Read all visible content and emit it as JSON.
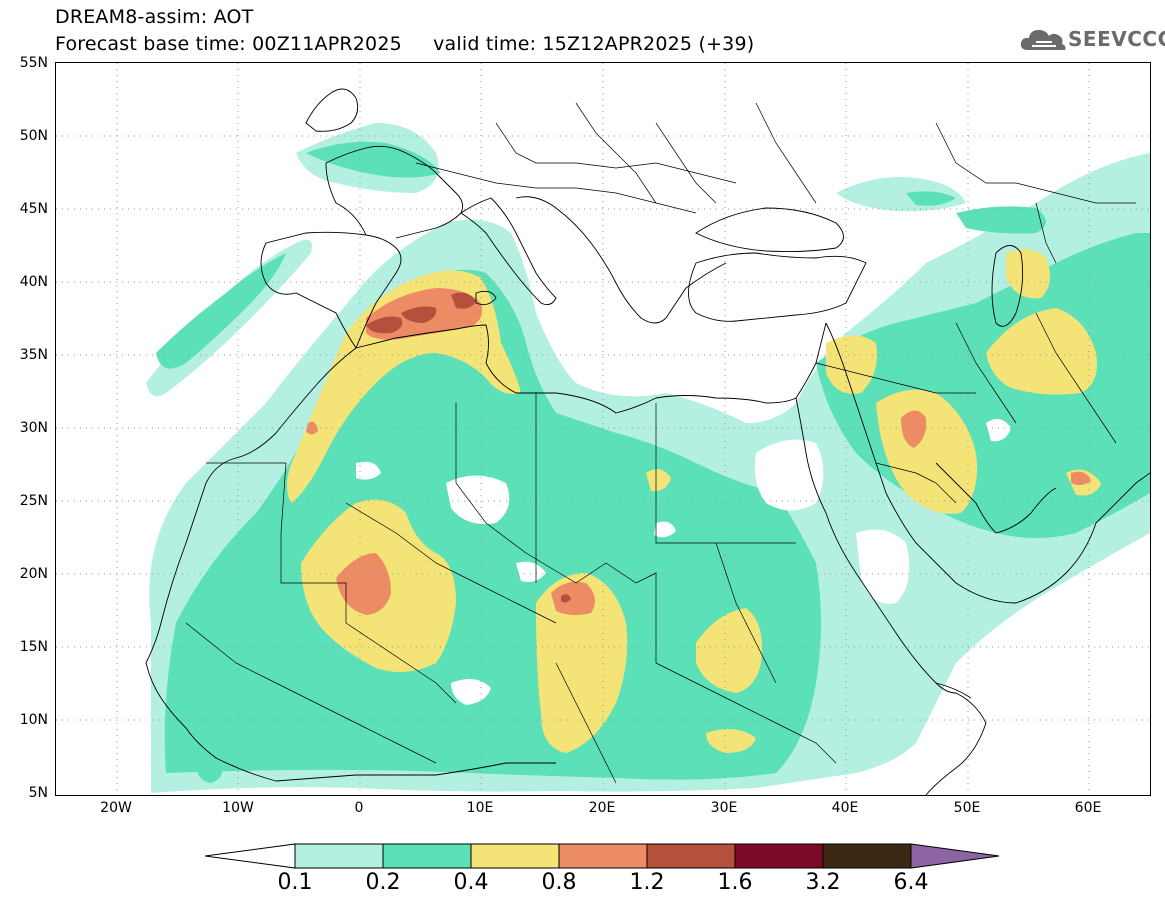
{
  "header": {
    "line1": "DREAM8-assim: AOT",
    "line2": "Forecast base time: 00Z11APR2025     valid time: 15Z12APR2025 (+39)"
  },
  "logo": {
    "text": "SEEVCCC",
    "icon": "cloud-icon",
    "color": "#6a6a6a"
  },
  "map": {
    "lat_labels": [
      "55N",
      "50N",
      "45N",
      "40N",
      "35N",
      "30N",
      "25N",
      "20N",
      "15N",
      "10N",
      "5N"
    ],
    "lon_labels": [
      "20W",
      "10W",
      "0",
      "10E",
      "20E",
      "30E",
      "40E",
      "50E",
      "60E"
    ],
    "lat_range": [
      5,
      55
    ],
    "lon_range": [
      -25,
      65
    ],
    "grid": "dotted"
  },
  "legend": {
    "levels": [
      "0.1",
      "0.2",
      "0.4",
      "0.8",
      "1.2",
      "1.6",
      "3.2",
      "6.4"
    ],
    "colors": [
      "#ffffff",
      "#b4f0e2",
      "#5ce0b8",
      "#f4e478",
      "#eb8c64",
      "#b4503c",
      "#7a0a28",
      "#3c2814",
      "#8c64a6"
    ]
  }
}
